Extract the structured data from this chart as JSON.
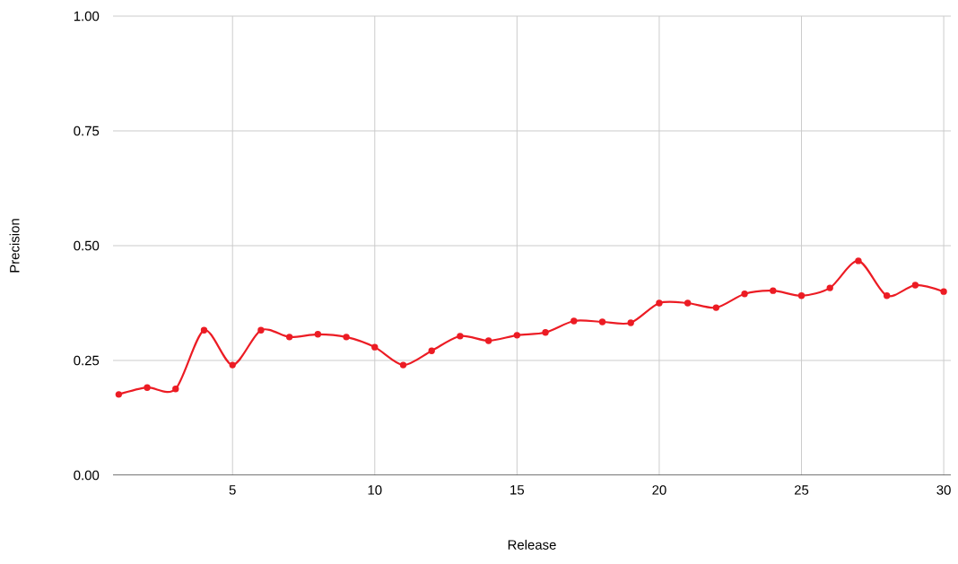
{
  "chart_data": {
    "type": "line",
    "xlabel": "Release",
    "ylabel": "Precision",
    "x": [
      1,
      2,
      3,
      4,
      5,
      6,
      7,
      8,
      9,
      10,
      11,
      12,
      13,
      14,
      15,
      16,
      17,
      18,
      19,
      20,
      21,
      22,
      23,
      24,
      25,
      26,
      27,
      28,
      29,
      30
    ],
    "series": [
      {
        "color": "#ec1c24",
        "values": [
          0.176,
          0.191,
          0.188,
          0.316,
          0.24,
          0.316,
          0.301,
          0.307,
          0.301,
          0.279,
          0.24,
          0.271,
          0.303,
          0.293,
          0.305,
          0.311,
          0.336,
          0.334,
          0.332,
          0.375,
          0.375,
          0.365,
          0.395,
          0.402,
          0.391,
          0.408,
          0.467,
          0.391,
          0.414,
          0.4
        ]
      }
    ],
    "xlim": [
      0.8,
      30.25
    ],
    "xticks": [
      5,
      10,
      15,
      20,
      25,
      30
    ],
    "ylim": [
      0,
      1
    ],
    "yticks": [
      {
        "value": 0,
        "label": "0.00"
      },
      {
        "value": 0.25,
        "label": "0.25"
      },
      {
        "value": 0.5,
        "label": "0.50"
      },
      {
        "value": 0.75,
        "label": "0.75"
      },
      {
        "value": 1,
        "label": "1.00"
      }
    ],
    "grid": true,
    "marker": "circle",
    "line_style": "solid"
  }
}
